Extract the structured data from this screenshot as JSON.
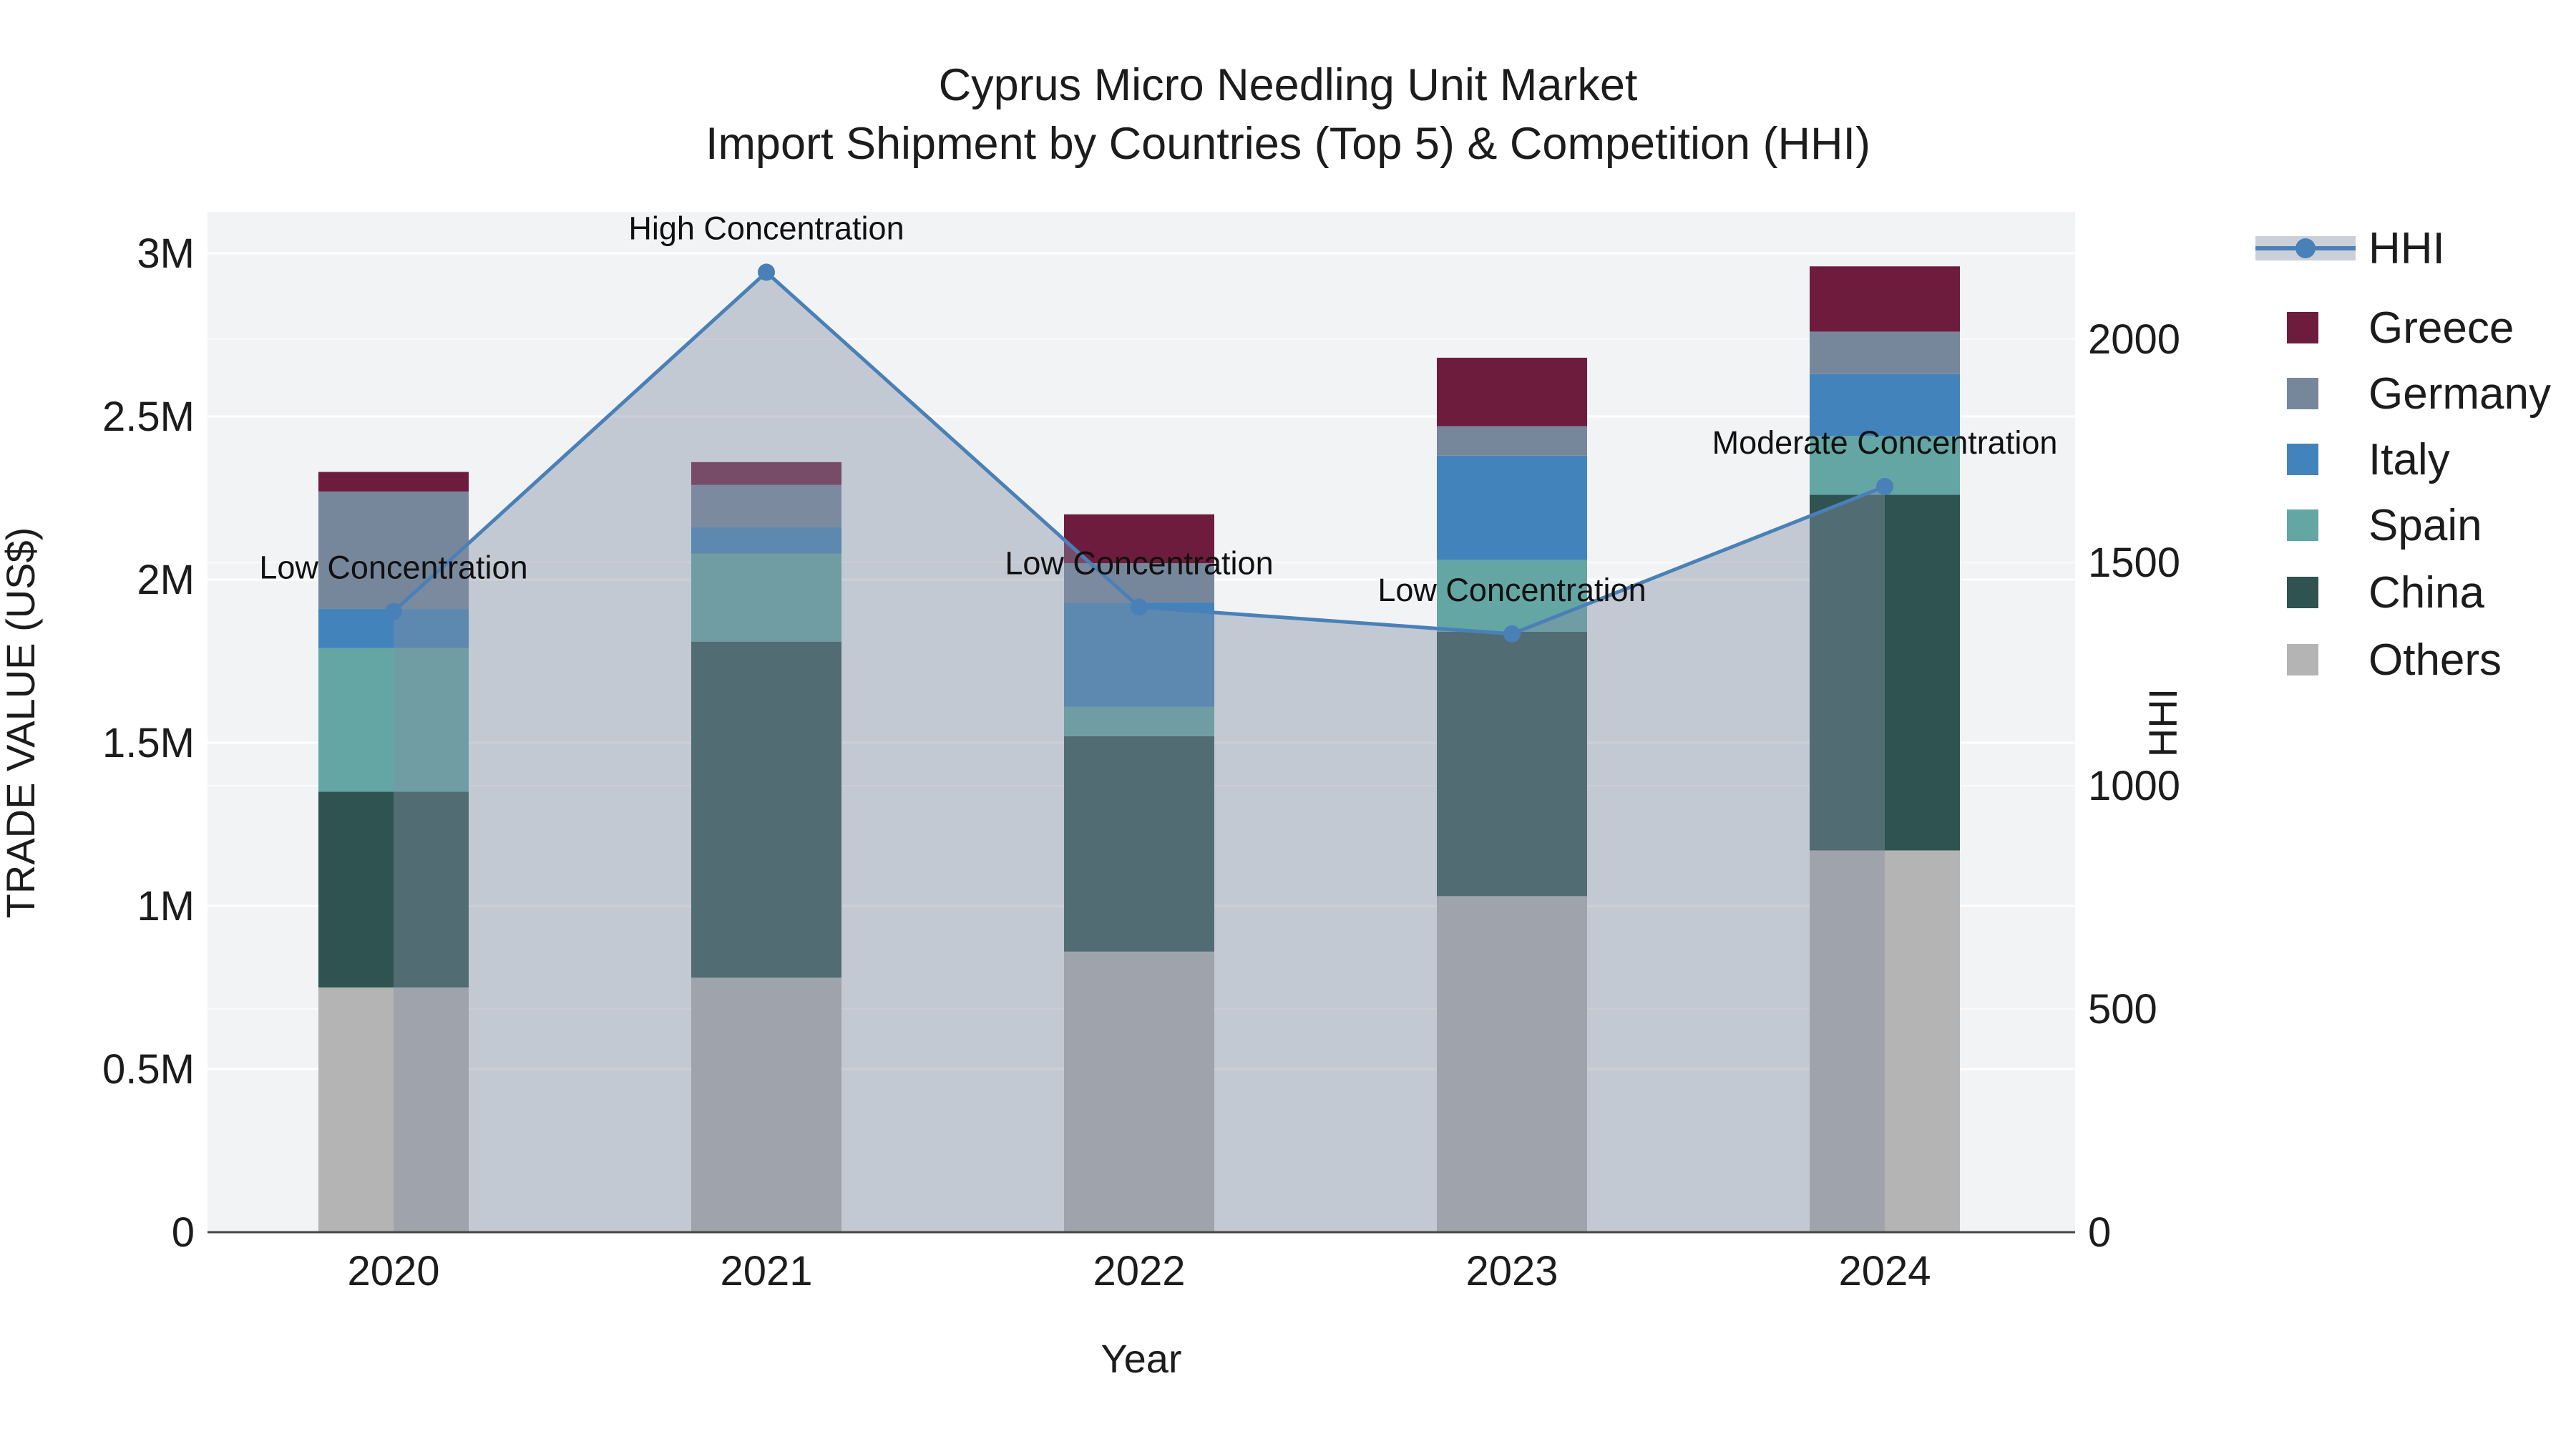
{
  "title": {
    "line1": "Cyprus Micro Needling Unit Market",
    "line2": "Import Shipment by Countries (Top 5) & Competition (HHI)"
  },
  "axes": {
    "y_left": {
      "title": "TRADE VALUE (US$)",
      "tick_labels": [
        "0",
        "0.5M",
        "1M",
        "1.5M",
        "2M",
        "2.5M",
        "3M"
      ],
      "tick_values": [
        0,
        0.5,
        1,
        1.5,
        2,
        2.5,
        3
      ]
    },
    "y_right": {
      "title": "HHI",
      "tick_labels": [
        "0",
        "500",
        "1000",
        "1500",
        "2000"
      ],
      "tick_values": [
        0,
        500,
        1000,
        1500,
        2000
      ]
    },
    "x": {
      "title": "Year",
      "categories": [
        "2020",
        "2021",
        "2022",
        "2023",
        "2024"
      ]
    }
  },
  "legend": {
    "items": [
      {
        "label": "HHI",
        "type": "line"
      },
      {
        "label": "Greece",
        "type": "swatch"
      },
      {
        "label": "Germany",
        "type": "swatch"
      },
      {
        "label": "Italy",
        "type": "swatch"
      },
      {
        "label": "Spain",
        "type": "swatch"
      },
      {
        "label": "China",
        "type": "swatch"
      },
      {
        "label": "Others",
        "type": "swatch"
      }
    ]
  },
  "colors": {
    "Greece": "#6E1C3E",
    "Germany": "#76879B",
    "Italy": "#4383BB",
    "Spain": "#63A6A4",
    "China": "#2F5351",
    "Others": "#B4B4B4",
    "hhi_line": "#4A80B8",
    "hhi_area": "rgba(130,142,162,0.42)",
    "plot_bg": "#F2F3F4",
    "grid_major": "#FFFFFF",
    "grid_minor": "#FBFBFC",
    "axis_line": "#444444",
    "text": "#1C1C1C"
  },
  "chart_data": {
    "type": "stacked-bar+line",
    "categories": [
      "2020",
      "2021",
      "2022",
      "2023",
      "2024"
    ],
    "bar_unit": "M US$ (trade value, left axis)",
    "series": [
      {
        "name": "Others",
        "values": [
          0.75,
          0.78,
          0.86,
          1.03,
          1.17
        ]
      },
      {
        "name": "China",
        "values": [
          0.6,
          1.03,
          0.66,
          0.81,
          1.09
        ]
      },
      {
        "name": "Spain",
        "values": [
          0.44,
          0.27,
          0.09,
          0.22,
          0.18
        ]
      },
      {
        "name": "Italy",
        "values": [
          0.12,
          0.08,
          0.32,
          0.32,
          0.19
        ]
      },
      {
        "name": "Germany",
        "values": [
          0.36,
          0.13,
          0.12,
          0.09,
          0.13
        ]
      },
      {
        "name": "Greece",
        "values": [
          0.06,
          0.07,
          0.15,
          0.21,
          0.2
        ]
      }
    ],
    "bar_totals": [
      2.33,
      2.36,
      2.2,
      2.68,
      2.96
    ],
    "line": {
      "name": "HHI",
      "values": [
        1390,
        2150,
        1400,
        1340,
        1670
      ],
      "axis": "right",
      "has_area_fill": true,
      "markers": true
    },
    "annotations": [
      {
        "x": "2020",
        "text": "Low Concentration"
      },
      {
        "x": "2021",
        "text": "High Concentration"
      },
      {
        "x": "2022",
        "text": "Low Concentration"
      },
      {
        "x": "2023",
        "text": "Low Concentration"
      },
      {
        "x": "2024",
        "text": "Moderate Concentration"
      }
    ],
    "ylim_left": [
      0,
      3.13
    ],
    "ylim_right": [
      0,
      2290
    ],
    "grid": true,
    "legend_position": "right"
  }
}
